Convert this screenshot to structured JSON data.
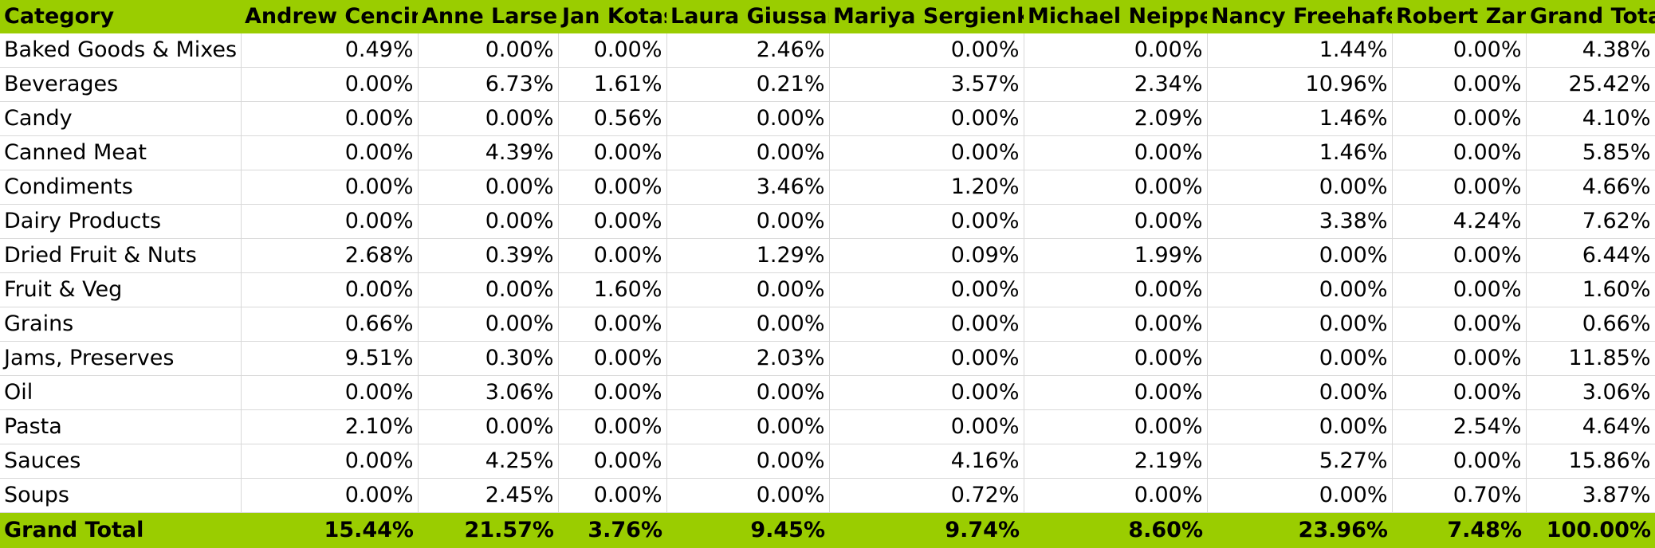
{
  "pivot": {
    "headers": [
      "Category",
      "Andrew Cencini",
      "Anne Larsen",
      "Jan Kotas",
      "Laura Giussani",
      "Mariya Sergienko",
      "Michael Neipper",
      "Nancy Freehafer",
      "Robert Zare",
      "Grand Total"
    ],
    "rows": [
      {
        "category": "Baked Goods & Mixes",
        "values": [
          "0.49%",
          "0.00%",
          "0.00%",
          "2.46%",
          "0.00%",
          "0.00%",
          "1.44%",
          "0.00%",
          "4.38%"
        ]
      },
      {
        "category": "Beverages",
        "values": [
          "0.00%",
          "6.73%",
          "1.61%",
          "0.21%",
          "3.57%",
          "2.34%",
          "10.96%",
          "0.00%",
          "25.42%"
        ]
      },
      {
        "category": "Candy",
        "values": [
          "0.00%",
          "0.00%",
          "0.56%",
          "0.00%",
          "0.00%",
          "2.09%",
          "1.46%",
          "0.00%",
          "4.10%"
        ]
      },
      {
        "category": "Canned Meat",
        "values": [
          "0.00%",
          "4.39%",
          "0.00%",
          "0.00%",
          "0.00%",
          "0.00%",
          "1.46%",
          "0.00%",
          "5.85%"
        ]
      },
      {
        "category": "Condiments",
        "values": [
          "0.00%",
          "0.00%",
          "0.00%",
          "3.46%",
          "1.20%",
          "0.00%",
          "0.00%",
          "0.00%",
          "4.66%"
        ]
      },
      {
        "category": "Dairy Products",
        "values": [
          "0.00%",
          "0.00%",
          "0.00%",
          "0.00%",
          "0.00%",
          "0.00%",
          "3.38%",
          "4.24%",
          "7.62%"
        ]
      },
      {
        "category": "Dried Fruit & Nuts",
        "values": [
          "2.68%",
          "0.39%",
          "0.00%",
          "1.29%",
          "0.09%",
          "1.99%",
          "0.00%",
          "0.00%",
          "6.44%"
        ]
      },
      {
        "category": "Fruit & Veg",
        "values": [
          "0.00%",
          "0.00%",
          "1.60%",
          "0.00%",
          "0.00%",
          "0.00%",
          "0.00%",
          "0.00%",
          "1.60%"
        ]
      },
      {
        "category": "Grains",
        "values": [
          "0.66%",
          "0.00%",
          "0.00%",
          "0.00%",
          "0.00%",
          "0.00%",
          "0.00%",
          "0.00%",
          "0.66%"
        ]
      },
      {
        "category": "Jams, Preserves",
        "values": [
          "9.51%",
          "0.30%",
          "0.00%",
          "2.03%",
          "0.00%",
          "0.00%",
          "0.00%",
          "0.00%",
          "11.85%"
        ]
      },
      {
        "category": "Oil",
        "values": [
          "0.00%",
          "3.06%",
          "0.00%",
          "0.00%",
          "0.00%",
          "0.00%",
          "0.00%",
          "0.00%",
          "3.06%"
        ]
      },
      {
        "category": "Pasta",
        "values": [
          "2.10%",
          "0.00%",
          "0.00%",
          "0.00%",
          "0.00%",
          "0.00%",
          "0.00%",
          "2.54%",
          "4.64%"
        ]
      },
      {
        "category": "Sauces",
        "values": [
          "0.00%",
          "4.25%",
          "0.00%",
          "0.00%",
          "4.16%",
          "2.19%",
          "5.27%",
          "0.00%",
          "15.86%"
        ]
      },
      {
        "category": "Soups",
        "values": [
          "0.00%",
          "2.45%",
          "0.00%",
          "0.00%",
          "0.72%",
          "0.00%",
          "0.00%",
          "0.70%",
          "3.87%"
        ]
      }
    ],
    "total": {
      "category": "Grand Total",
      "values": [
        "15.44%",
        "21.57%",
        "3.76%",
        "9.45%",
        "9.74%",
        "8.60%",
        "23.96%",
        "7.48%",
        "100.00%"
      ]
    }
  },
  "colors": {
    "header_background": "#9acd00",
    "gridline": "#d9d9d9"
  }
}
